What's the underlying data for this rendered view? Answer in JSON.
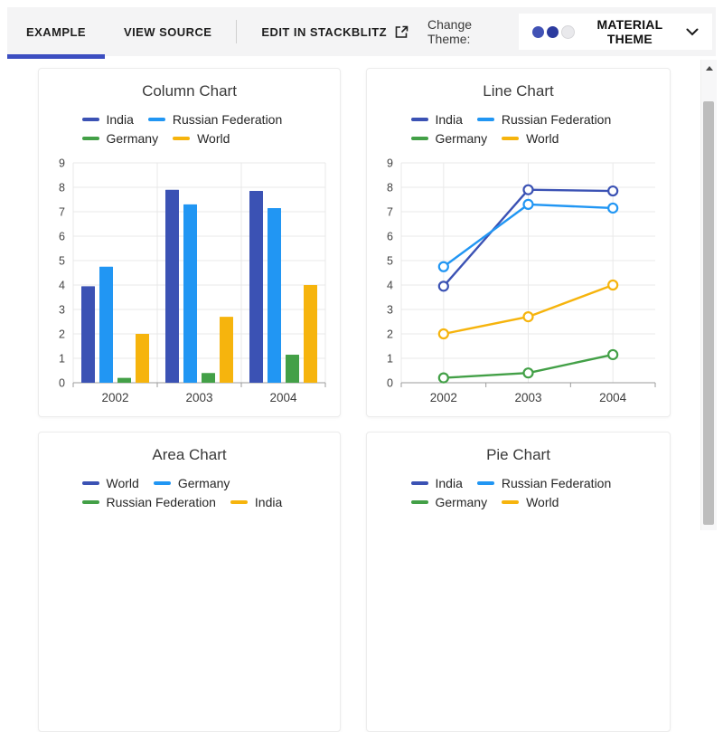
{
  "header": {
    "tabs": [
      {
        "label": "EXAMPLE",
        "active": true
      },
      {
        "label": "VIEW SOURCE",
        "active": false
      },
      {
        "label": "EDIT IN STACKBLITZ",
        "active": false,
        "icon": "external-link-icon"
      }
    ],
    "change_theme_label": "Change Theme:",
    "theme_selector": {
      "label": "MATERIAL THEME",
      "dot_colors": [
        "#4152b5",
        "#2c3b9f",
        "#e9e9ec"
      ],
      "chevron": "chevron-down-icon"
    }
  },
  "colors": {
    "accent": "#3c4ec1",
    "header_background": "#f4f4f5",
    "grid_line": "#e9e9e9",
    "axis_line": "#9b9b9b",
    "tick_text": "#444444"
  },
  "scrollbar": {
    "up_arrow_icon": "triangle-up"
  },
  "chart_data": [
    {
      "type": "bar",
      "title": "Column Chart",
      "categories": [
        "2002",
        "2003",
        "2004"
      ],
      "series": [
        {
          "name": "India",
          "color": "#3b52b4",
          "values": [
            3.95,
            7.9,
            7.85
          ]
        },
        {
          "name": "Russian Federation",
          "color": "#2196f3",
          "values": [
            4.75,
            7.3,
            7.15
          ]
        },
        {
          "name": "Germany",
          "color": "#43a047",
          "values": [
            0.2,
            0.4,
            1.15
          ]
        },
        {
          "name": "World",
          "color": "#f6b40d",
          "values": [
            2.0,
            2.7,
            4.0
          ]
        }
      ],
      "ylim": [
        0,
        9
      ],
      "yticks": [
        0,
        1,
        2,
        3,
        4,
        5,
        6,
        7,
        8,
        9
      ],
      "xlabel": "",
      "ylabel": "",
      "grid": true,
      "legend_position": "top"
    },
    {
      "type": "line",
      "title": "Line Chart",
      "categories": [
        "2002",
        "2003",
        "2004"
      ],
      "series": [
        {
          "name": "India",
          "color": "#3b52b4",
          "values": [
            3.95,
            7.9,
            7.85
          ]
        },
        {
          "name": "Russian Federation",
          "color": "#2196f3",
          "values": [
            4.75,
            7.3,
            7.15
          ]
        },
        {
          "name": "Germany",
          "color": "#43a047",
          "values": [
            0.2,
            0.4,
            1.15
          ]
        },
        {
          "name": "World",
          "color": "#f6b40d",
          "values": [
            2.0,
            2.7,
            4.0
          ]
        }
      ],
      "ylim": [
        0,
        9
      ],
      "yticks": [
        0,
        1,
        2,
        3,
        4,
        5,
        6,
        7,
        8,
        9
      ],
      "xlabel": "",
      "ylabel": "",
      "grid": true,
      "legend_position": "top",
      "marker": "circle"
    },
    {
      "type": "area",
      "title": "Area Chart",
      "series": [
        {
          "name": "World",
          "color": "#3b52b4"
        },
        {
          "name": "Germany",
          "color": "#2196f3"
        },
        {
          "name": "Russian Federation",
          "color": "#43a047"
        },
        {
          "name": "India",
          "color": "#f6b40d"
        }
      ],
      "legend_position": "top"
    },
    {
      "type": "pie",
      "title": "Pie Chart",
      "series": [
        {
          "name": "India",
          "color": "#3b52b4"
        },
        {
          "name": "Russian Federation",
          "color": "#2196f3"
        },
        {
          "name": "Germany",
          "color": "#43a047"
        },
        {
          "name": "World",
          "color": "#f6b40d"
        }
      ],
      "legend_position": "top"
    }
  ]
}
